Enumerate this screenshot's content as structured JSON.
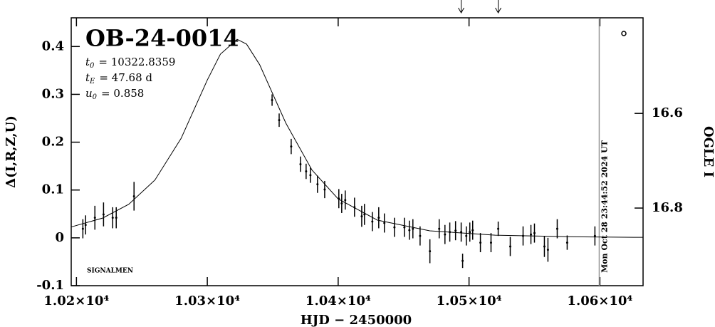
{
  "chart_data": {
    "type": "scatter",
    "title": "OB-24-0014",
    "parameters": [
      {
        "symbol": "t",
        "subscript": "0",
        "text": "= 10322.8359"
      },
      {
        "symbol": "t",
        "subscript": "E",
        "text": "= 47.68 d"
      },
      {
        "symbol": "u",
        "subscript": "0",
        "text": "= 0.858"
      }
    ],
    "credit": "SIGNALMEN",
    "x_label": "HJD − 2450000",
    "y_label": "Δ(I,R,Z,U)",
    "y2_label": "OGLE I",
    "color": "#000000",
    "timestamp": {
      "x": 10599.5,
      "label": "Mon Oct 28 23:44:52 2024 UT",
      "color": "#999999"
    },
    "arrows_x": [
      10494,
      10522.3
    ],
    "xlim": [
      10196,
      10633
    ],
    "ylim": [
      -0.1,
      0.46
    ],
    "y2lim": [
      16.964,
      16.398
    ],
    "xticks": [
      {
        "value": 10200,
        "label": "1.02×10⁴"
      },
      {
        "value": 10300,
        "label": "1.03×10⁴"
      },
      {
        "value": 10400,
        "label": "1.04×10⁴"
      },
      {
        "value": 10500,
        "label": "1.05×10⁴"
      },
      {
        "value": 10600,
        "label": "1.06×10⁴"
      }
    ],
    "yticks": [
      -0.1,
      0,
      0.1,
      0.2,
      0.3,
      0.4
    ],
    "y2ticks": [
      16.6,
      16.8
    ],
    "x": [
      10204.9,
      10207,
      10214.1,
      10220.7,
      10227.7,
      10230.4,
      10244,
      10349.5,
      10354.9,
      10364.1,
      10371.2,
      10375.5,
      10378.8,
      10384.2,
      10389.7,
      10400.5,
      10402.7,
      10405.4,
      10412.5,
      10418,
      10420.1,
      10426.1,
      10431,
      10435.3,
      10443,
      10450.6,
      10454.4,
      10457.1,
      10462.6,
      10470.1,
      10477.2,
      10481.6,
      10485.3,
      10489.7,
      10494,
      10497.9,
      10500.6,
      10502.8,
      10495.1,
      10508.7,
      10516.8,
      10522.3,
      10531.5,
      10541.3,
      10547.3,
      10550,
      10557.6,
      10560.3,
      10567.4,
      10575,
      10596.2
    ],
    "values": [
      0.019,
      0.027,
      0.042,
      0.049,
      0.042,
      0.042,
      0.087,
      0.288,
      0.246,
      0.191,
      0.154,
      0.139,
      0.131,
      0.112,
      0.101,
      0.082,
      0.072,
      0.079,
      0.064,
      0.045,
      0.049,
      0.034,
      0.042,
      0.031,
      0.022,
      0.022,
      0.016,
      0.019,
      0.004,
      -0.028,
      0.019,
      0.007,
      0.012,
      0.015,
      0.012,
      0.004,
      0.012,
      0.016,
      -0.048,
      -0.01,
      -0.01,
      0.019,
      -0.018,
      0.004,
      0.007,
      0.01,
      -0.018,
      -0.025,
      0.019,
      -0.01,
      0.004
    ],
    "errors": [
      0.02,
      0.02,
      0.025,
      0.025,
      0.022,
      0.022,
      0.03,
      0.012,
      0.014,
      0.016,
      0.016,
      0.016,
      0.016,
      0.018,
      0.018,
      0.02,
      0.02,
      0.02,
      0.02,
      0.022,
      0.022,
      0.02,
      0.022,
      0.02,
      0.02,
      0.02,
      0.02,
      0.02,
      0.02,
      0.025,
      0.02,
      0.02,
      0.02,
      0.02,
      0.02,
      0.02,
      0.02,
      0.02,
      0.015,
      0.02,
      0.02,
      0.015,
      0.02,
      0.02,
      0.02,
      0.02,
      0.022,
      0.025,
      0.02,
      0.015,
      0.02
    ],
    "model": {
      "type": "line",
      "x": [
        10196,
        10220,
        10240,
        10260,
        10280,
        10300,
        10310,
        10322.8,
        10330,
        10340,
        10360,
        10380,
        10400,
        10430,
        10470,
        10520,
        10580,
        10633
      ],
      "values": [
        0.0228,
        0.0413,
        0.0702,
        0.121,
        0.208,
        0.33,
        0.384,
        0.415,
        0.405,
        0.362,
        0.24,
        0.1417,
        0.0814,
        0.037,
        0.0147,
        0.0055,
        0.0022,
        0.001
      ]
    }
  }
}
